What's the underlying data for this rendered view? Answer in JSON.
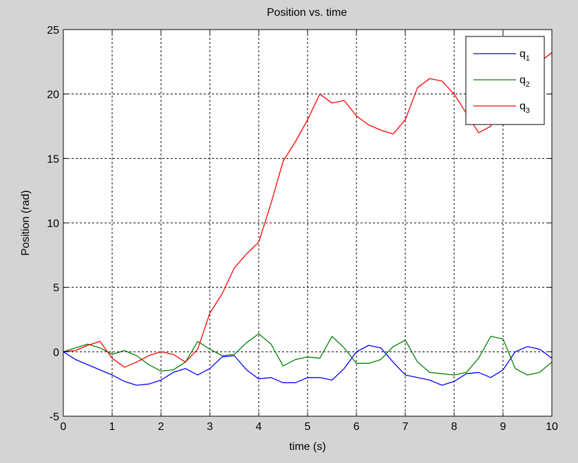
{
  "chart_data": {
    "type": "line",
    "title": "Position vs. time",
    "xlabel": "time (s)",
    "ylabel": "Position (rad)",
    "xlim": [
      0,
      10
    ],
    "ylim": [
      -5,
      25
    ],
    "xticks": [
      0,
      1,
      2,
      3,
      4,
      5,
      6,
      7,
      8,
      9,
      10
    ],
    "yticks": [
      -5,
      0,
      5,
      10,
      15,
      20,
      25
    ],
    "grid": true,
    "legend_position": "top-right",
    "background": "#ffffff",
    "series": [
      {
        "name": "q",
        "subscript": "1",
        "color": "#0000ff",
        "x": [
          0,
          0.25,
          0.5,
          0.75,
          1.0,
          1.25,
          1.5,
          1.75,
          2.0,
          2.25,
          2.5,
          2.75,
          3.0,
          3.25,
          3.5,
          3.75,
          4.0,
          4.25,
          4.5,
          4.75,
          5.0,
          5.25,
          5.5,
          5.75,
          6.0,
          6.25,
          6.5,
          6.75,
          7.0,
          7.25,
          7.5,
          7.75,
          8.0,
          8.25,
          8.5,
          8.75,
          9.0,
          9.25,
          9.5,
          9.75,
          10.0
        ],
        "y": [
          0,
          -0.6,
          -1.0,
          -1.4,
          -1.8,
          -2.3,
          -2.6,
          -2.5,
          -2.2,
          -1.6,
          -1.3,
          -1.8,
          -1.3,
          -0.4,
          -0.3,
          -1.4,
          -2.1,
          -2.0,
          -2.4,
          -2.4,
          -2.0,
          -2.0,
          -2.2,
          -1.3,
          0.0,
          0.5,
          0.3,
          -0.8,
          -1.8,
          -2.0,
          -2.2,
          -2.6,
          -2.3,
          -1.7,
          -1.6,
          -2.0,
          -1.4,
          0.0,
          0.4,
          0.2,
          -0.5
        ]
      },
      {
        "name": "q",
        "subscript": "2",
        "color": "#008000",
        "x": [
          0,
          0.25,
          0.5,
          0.75,
          1.0,
          1.25,
          1.5,
          1.75,
          2.0,
          2.25,
          2.5,
          2.75,
          3.0,
          3.25,
          3.5,
          3.75,
          4.0,
          4.25,
          4.5,
          4.75,
          5.0,
          5.25,
          5.5,
          5.75,
          6.0,
          6.25,
          6.5,
          6.75,
          7.0,
          7.25,
          7.5,
          7.75,
          8.0,
          8.25,
          8.5,
          8.75,
          9.0,
          9.25,
          9.5,
          9.75,
          10.0
        ],
        "y": [
          0,
          0.3,
          0.6,
          0.3,
          -0.2,
          0.1,
          -0.3,
          -1.0,
          -1.5,
          -1.4,
          -0.8,
          0.8,
          0.2,
          -0.3,
          -0.2,
          0.7,
          1.4,
          0.6,
          -1.1,
          -0.6,
          -0.4,
          -0.5,
          1.2,
          0.3,
          -0.9,
          -0.9,
          -0.6,
          0.4,
          0.9,
          -0.8,
          -1.6,
          -1.7,
          -1.8,
          -1.6,
          -0.5,
          1.2,
          1.0,
          -1.3,
          -1.8,
          -1.6,
          -0.8
        ]
      },
      {
        "name": "q",
        "subscript": "3",
        "color": "#ff0000",
        "x": [
          0,
          0.25,
          0.5,
          0.75,
          1.0,
          1.25,
          1.5,
          1.75,
          2.0,
          2.25,
          2.5,
          2.75,
          3.0,
          3.25,
          3.5,
          3.75,
          4.0,
          4.25,
          4.5,
          4.75,
          5.0,
          5.25,
          5.5,
          5.75,
          6.0,
          6.25,
          6.5,
          6.75,
          7.0,
          7.25,
          7.5,
          7.75,
          8.0,
          8.25,
          8.5,
          8.75,
          9.0,
          9.25,
          9.5,
          9.75,
          10.0
        ],
        "y": [
          0,
          0.1,
          0.5,
          0.8,
          -0.5,
          -1.2,
          -0.8,
          -0.3,
          0.0,
          -0.2,
          -0.8,
          0.2,
          3.0,
          4.5,
          6.5,
          7.6,
          8.5,
          11.5,
          14.8,
          16.3,
          18.0,
          20.0,
          19.3,
          19.5,
          18.3,
          17.6,
          17.2,
          16.9,
          18.0,
          20.5,
          21.2,
          21.0,
          20.0,
          18.5,
          17.0,
          17.5,
          19.5,
          21.0,
          21.8,
          22.5,
          23.2
        ]
      }
    ]
  }
}
